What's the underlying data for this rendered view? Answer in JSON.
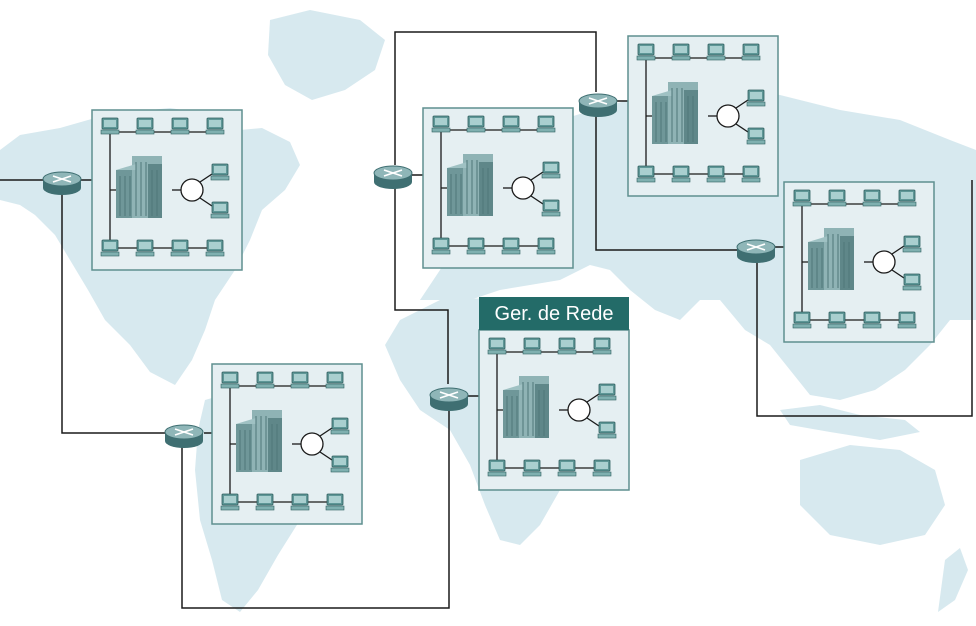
{
  "diagram": {
    "title": "",
    "colors": {
      "background": "#ffffff",
      "map": "#d7e9ef",
      "site_panel": "#e5eff2",
      "site_border": "#5f8f8f",
      "label_bg": "#236b68",
      "label_text": "#ffffff",
      "link": "#1a1a1a",
      "router_top": "#8fb6b8",
      "router_side": "#3f6f72",
      "building": "#7fa4a6",
      "computer": "#5f9797"
    },
    "labels": {
      "management_site": "Ger. de Rede"
    },
    "sites": [
      {
        "id": "site-north-america",
        "icon": "building-icon",
        "computers": 10,
        "router": "router-icon",
        "label_key": ""
      },
      {
        "id": "site-south-america",
        "icon": "building-icon",
        "computers": 10,
        "router": "router-icon",
        "label_key": ""
      },
      {
        "id": "site-europe",
        "icon": "building-icon",
        "computers": 10,
        "router": "router-icon",
        "label_key": ""
      },
      {
        "id": "site-management",
        "icon": "building-icon",
        "computers": 10,
        "router": "router-icon",
        "label_key": "management_site"
      },
      {
        "id": "site-russia",
        "icon": "building-icon",
        "computers": 10,
        "router": "router-icon",
        "label_key": ""
      },
      {
        "id": "site-asia",
        "icon": "building-icon",
        "computers": 10,
        "router": "router-icon",
        "label_key": ""
      }
    ]
  }
}
